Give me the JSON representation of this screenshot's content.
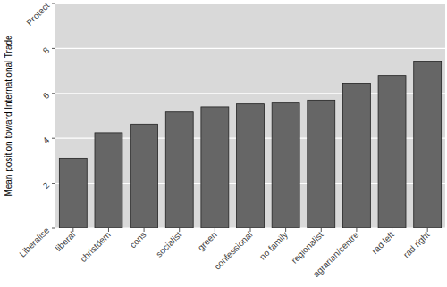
{
  "chart_data": {
    "type": "bar",
    "y_label": "Mean position toward International Trade",
    "categories": [
      "liberal",
      "christdem",
      "cons",
      "socialist",
      "green",
      "confessional",
      "no family",
      "regionalist",
      "agrarian/centre",
      "rad left",
      "rad right"
    ],
    "values": [
      3.12,
      4.25,
      4.63,
      5.17,
      5.4,
      5.53,
      5.57,
      5.7,
      6.45,
      6.8,
      7.4
    ],
    "color": "#666666",
    "ylim": [
      0,
      10
    ],
    "yticks": [
      {
        "value": 0,
        "label": "Liberalise"
      },
      2,
      4,
      6,
      8,
      {
        "value": 10,
        "label": "Protect"
      }
    ],
    "grid": true
  }
}
